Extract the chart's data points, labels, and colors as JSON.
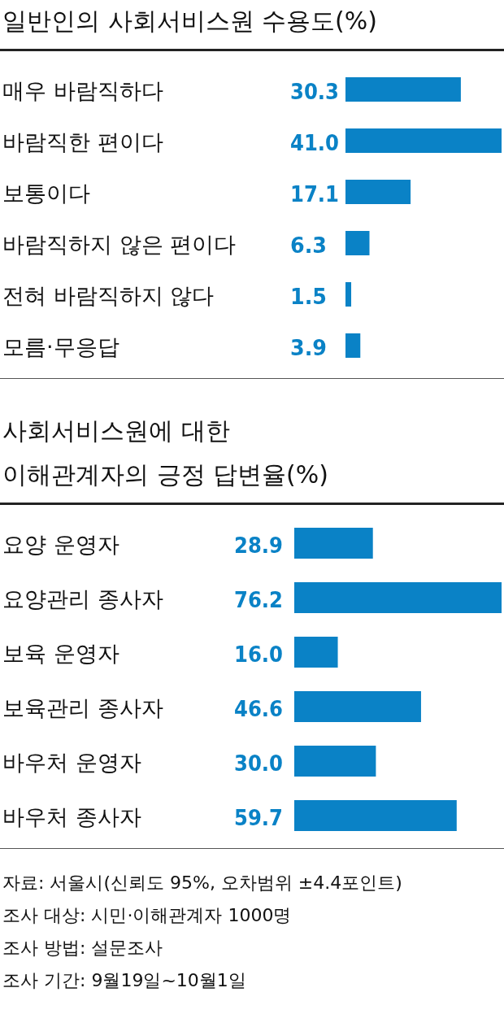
{
  "chart_data": [
    {
      "type": "bar",
      "orientation": "horizontal",
      "title": "일반인의 사회서비스원 수용도(%)",
      "categories": [
        "매우 바람직하다",
        "바람직한 편이다",
        "보통이다",
        "바람직하지 않은 편이다",
        "전혀 바람직하지 않다",
        "모름·무응답"
      ],
      "values": [
        30.3,
        41.0,
        17.1,
        6.3,
        1.5,
        3.9
      ],
      "value_labels": [
        "30.3",
        "41.0",
        "17.1",
        "6.3",
        "1.5",
        "3.9"
      ],
      "color": "#0a82c6"
    },
    {
      "type": "bar",
      "orientation": "horizontal",
      "title": "사회서비스원에 대한 이해관계자의 긍정 답변율(%)",
      "categories": [
        "요양 운영자",
        "요양관리 종사자",
        "보육 운영자",
        "보육관리 종사자",
        "바우처 운영자",
        "바우처 종사자"
      ],
      "values": [
        28.9,
        76.2,
        16.0,
        46.6,
        30.0,
        59.7
      ],
      "value_labels": [
        "28.9",
        "76.2",
        "16.0",
        "46.6",
        "30.0",
        "59.7"
      ],
      "color": "#0a82c6",
      "annotations": [
        "자료: 서울시(신뢰도 95%, 오차범위 ±4.4포인트)",
        "조사 대상: 시민·이해관계자 1000명",
        "조사 방법: 설문조사",
        "조사 기간: 9월19일~10월1일"
      ]
    }
  ]
}
